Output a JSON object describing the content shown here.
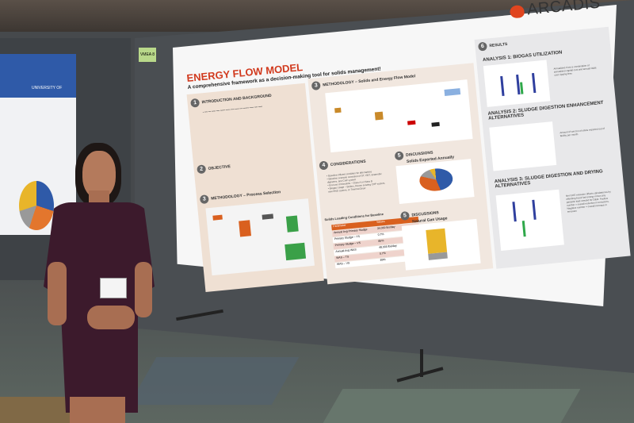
{
  "scene": {
    "left_poster_label": "UNIVERSITY OF",
    "sign_label": "VMEA 8"
  },
  "poster": {
    "brand": "ARCADIS",
    "title": "ENERGY FLOW MODEL",
    "subtitle": "A comprehensive framework as a decision-making tool for solids management!",
    "sections": [
      {
        "num": "1",
        "title": "INTRODUCTION AND BACKGROUND"
      },
      {
        "num": "2",
        "title": "OBJECTIVE"
      },
      {
        "num": "3",
        "title": "METHODOLOGY – Process Selection"
      },
      {
        "num": "3",
        "title": "METHODOLOGY – Solids and Energy Flow Model"
      },
      {
        "num": "4",
        "title": "CONSIDERATIONS"
      },
      {
        "num": "5",
        "title": "DISCUSSIONS",
        "sub": "Solids Exported Annually"
      },
      {
        "num": "5",
        "title": "DISCUSSIONS",
        "sub": "Natural Gas Usage"
      },
      {
        "num": "6",
        "title": "RESULTS"
      }
    ],
    "considerations": [
      "Baseline influent condition for alternatives",
      "Baseline scenario consisted of GT, GBT, anaerobic digesters, and CHP system",
      "End use of biosolids – Class A or Class B",
      "Biogas Usage – Boilers, Reuse existing CHP system, new RNG system, or Thermal Dryer"
    ],
    "table": {
      "title": "Solids Loading Conditions for Baseline",
      "headers": [
        "Parameter",
        "Values"
      ],
      "rows": [
        [
          "Annual Avg Primary Sludge",
          "34,000 lbs/day"
        ],
        [
          "Primary Sludge – TS",
          "0.7%"
        ],
        [
          "Primary Sludge – VS",
          "85%"
        ],
        [
          "Annual Avg WAS",
          "48,000 lbs/day"
        ],
        [
          "WAS – TS",
          "0.7%"
        ],
        [
          "WAS – VS",
          "89%"
        ]
      ]
    },
    "analyses": [
      {
        "title": "ANALYSIS 1: BIOGAS UTILIZATION",
        "legend": "Annualized Cost is combination of annualized capital cost and annual O&M cost, tipping fees",
        "color": "#2f3f9e"
      },
      {
        "title": "ANALYSIS 2: SLUDGE DIGESTION ENHANCEMENT ALTERNATIVES",
        "legend": "Amount of wet ton of solids exported out of facility per month",
        "color": "#5a3a1e"
      },
      {
        "title": "ANALYSIS 3: SLUDGE DIGESTION AND DRYING ALTERNATIVES",
        "legend": "Net GHG emission offsets calculated as by offsetting fossil fuel energy minus any parasitic load needed for O&M. Positive number = overall reduction in emissions. Negative number = overall increase in emission",
        "color": "#2fa84a"
      }
    ]
  }
}
